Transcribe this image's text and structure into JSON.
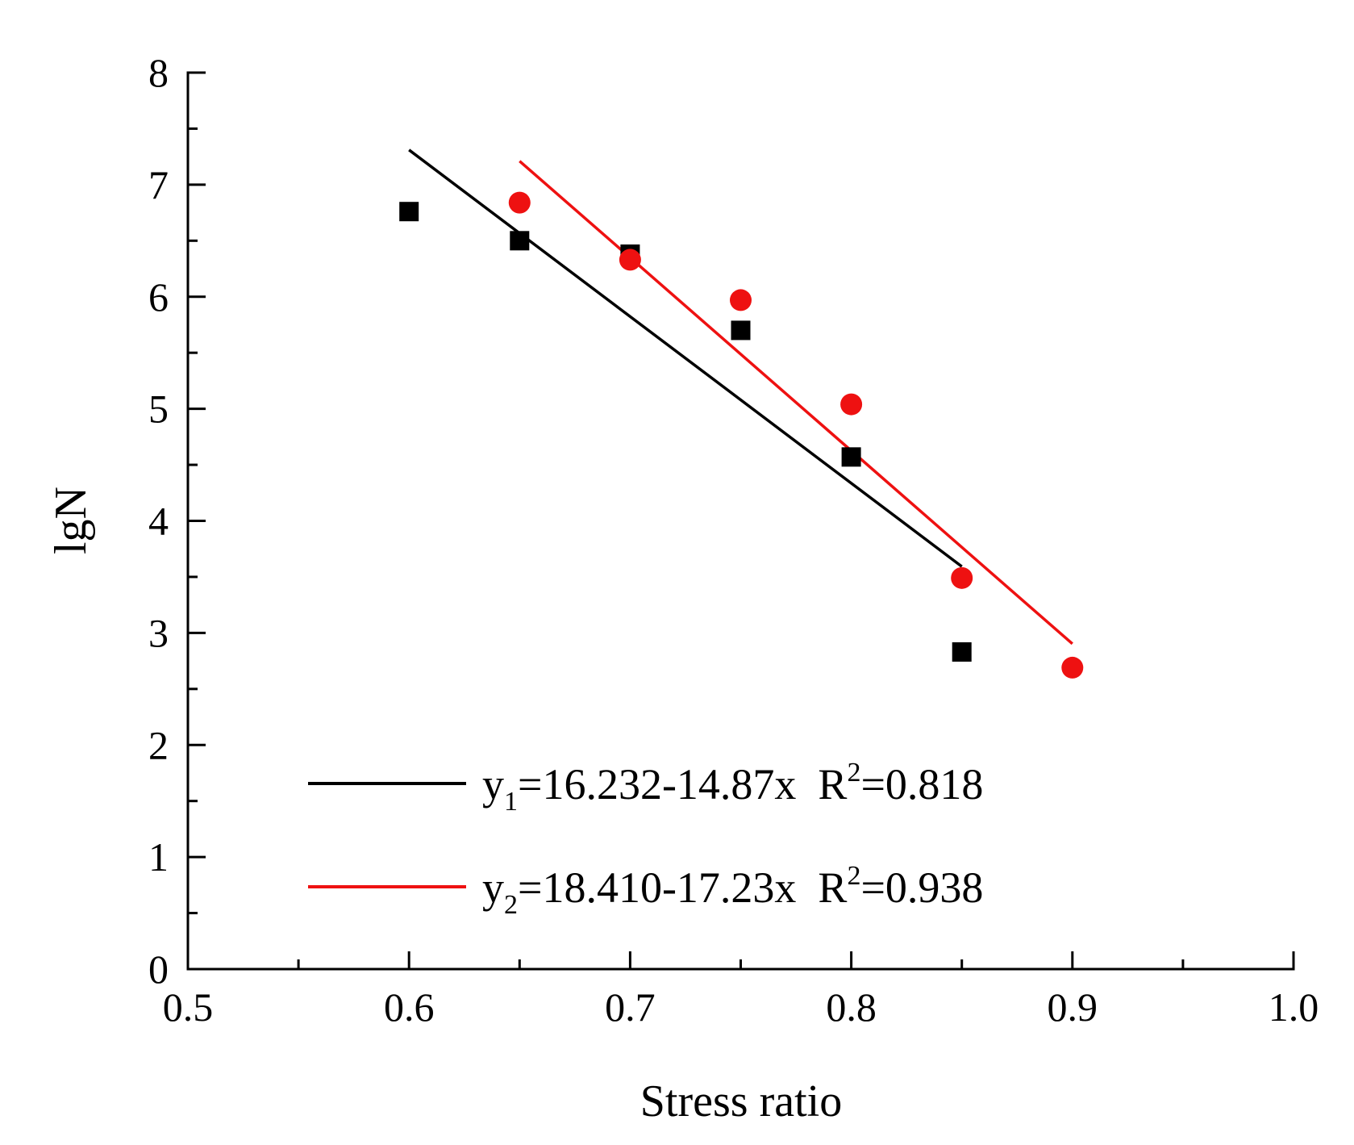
{
  "chart_data": {
    "type": "scatter",
    "title": "",
    "xlabel": "Stress ratio",
    "ylabel": "lgN",
    "xlim": [
      0.5,
      1.0
    ],
    "ylim": [
      0,
      8
    ],
    "x_ticks": [
      "0.5",
      "0.6",
      "0.7",
      "0.8",
      "0.9",
      "1.0"
    ],
    "y_ticks": [
      "0",
      "1",
      "2",
      "3",
      "4",
      "5",
      "6",
      "7",
      "8"
    ],
    "grid": false,
    "legend_position": "bottom-right",
    "series": [
      {
        "name": "y1",
        "marker": "square",
        "color": "#000000",
        "x": [
          0.6,
          0.65,
          0.7,
          0.75,
          0.8,
          0.85
        ],
        "y": [
          6.76,
          6.5,
          6.38,
          5.7,
          4.57,
          2.83
        ],
        "fit": {
          "intercept": 16.232,
          "slope": -14.87,
          "x_range": [
            0.6,
            0.85
          ],
          "equation_base": "y",
          "equation_sub": "1",
          "equation_rest": "=16.232-14.87x  R",
          "r2_sup": "2",
          "r2_value": "=0.818"
        }
      },
      {
        "name": "y2",
        "marker": "circle",
        "color": "#ee1111",
        "x": [
          0.65,
          0.7,
          0.75,
          0.8,
          0.85,
          0.9
        ],
        "y": [
          6.84,
          6.33,
          5.97,
          5.04,
          3.49,
          2.69
        ],
        "fit": {
          "intercept": 18.41,
          "slope": -17.23,
          "x_range": [
            0.65,
            0.9
          ],
          "equation_base": "y",
          "equation_sub": "2",
          "equation_rest": "=18.410-17.23x  R",
          "r2_sup": "2",
          "r2_value": "=0.938"
        }
      }
    ]
  }
}
